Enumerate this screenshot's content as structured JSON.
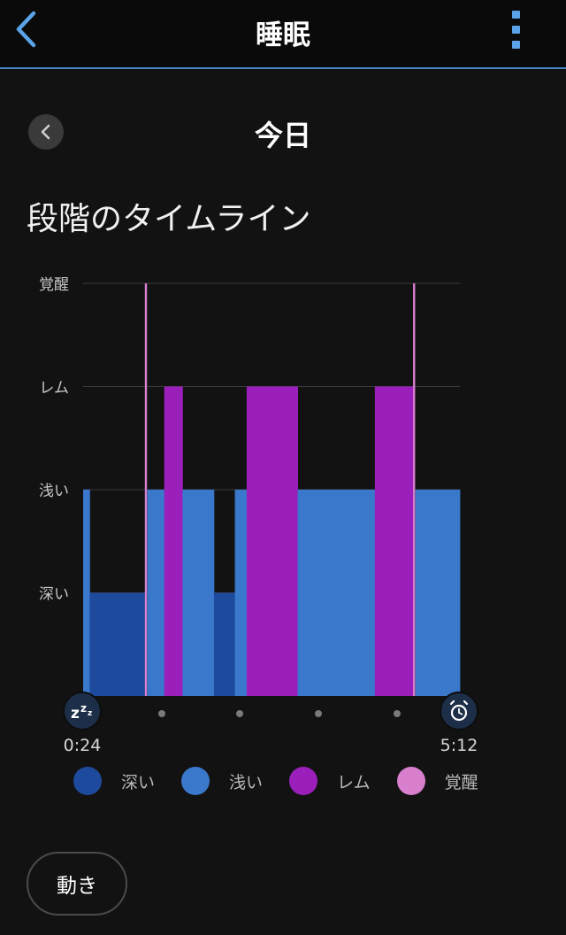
{
  "header": {
    "title": "睡眠",
    "back_icon": "chevron-left-icon",
    "menu_icon": "kebab-menu-icon"
  },
  "date_nav": {
    "title": "今日",
    "prev_icon": "chevron-left-icon"
  },
  "section": {
    "title": "段階のタイムライン"
  },
  "chart_data": {
    "type": "area",
    "title": "",
    "xlabel": "",
    "ylabel": "",
    "y_levels": [
      "深い",
      "浅い",
      "レム",
      "覚醒"
    ],
    "x_start_label": "0:24",
    "x_end_label": "5:12",
    "x_range_minutes": [
      0,
      288
    ],
    "grid": true,
    "colors": {
      "深い": "#1e4a9e",
      "浅い": "#3a78cc",
      "レム": "#9b20bb",
      "覚醒": "#d87fce"
    },
    "segments": [
      {
        "stage": "浅い",
        "start": 0,
        "end": 5
      },
      {
        "stage": "深い",
        "start": 5,
        "end": 47
      },
      {
        "stage": "覚醒",
        "start": 47,
        "end": 49
      },
      {
        "stage": "浅い",
        "start": 49,
        "end": 62
      },
      {
        "stage": "レム",
        "start": 62,
        "end": 76
      },
      {
        "stage": "浅い",
        "start": 76,
        "end": 100
      },
      {
        "stage": "深い",
        "start": 100,
        "end": 116
      },
      {
        "stage": "浅い",
        "start": 116,
        "end": 125
      },
      {
        "stage": "レム",
        "start": 125,
        "end": 164
      },
      {
        "stage": "浅い",
        "start": 164,
        "end": 223
      },
      {
        "stage": "レム",
        "start": 223,
        "end": 252
      },
      {
        "stage": "覚醒",
        "start": 252,
        "end": 254
      },
      {
        "stage": "浅い",
        "start": 254,
        "end": 288
      }
    ],
    "start_icon": "sleep-zzz-icon",
    "end_icon": "alarm-clock-icon"
  },
  "legend": [
    {
      "label": "深い",
      "color": "#1e4a9e"
    },
    {
      "label": "浅い",
      "color": "#3a78cc"
    },
    {
      "label": "レム",
      "color": "#9b20bb"
    },
    {
      "label": "覚醒",
      "color": "#d87fce"
    }
  ],
  "footer": {
    "motion_button": "動き"
  }
}
